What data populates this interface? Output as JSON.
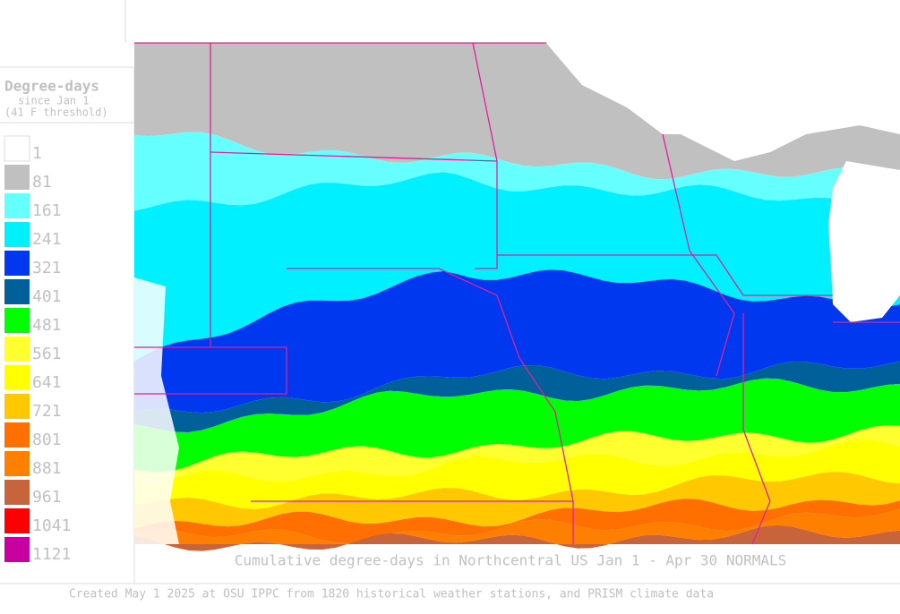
{
  "legend": {
    "title": "Degree-days",
    "subtitle": "since Jan 1",
    "threshold": "(41 F threshold)",
    "items": [
      {
        "label": "1",
        "color": "#ffffff"
      },
      {
        "label": "81",
        "color": "#c0c0c0"
      },
      {
        "label": "161",
        "color": "#66ffff"
      },
      {
        "label": "241",
        "color": "#00f0ff"
      },
      {
        "label": "321",
        "color": "#0038f0"
      },
      {
        "label": "401",
        "color": "#00609a"
      },
      {
        "label": "481",
        "color": "#00ff00"
      },
      {
        "label": "561",
        "color": "#ffff30"
      },
      {
        "label": "641",
        "color": "#ffff00"
      },
      {
        "label": "721",
        "color": "#ffc800"
      },
      {
        "label": "801",
        "color": "#ff7000"
      },
      {
        "label": "881",
        "color": "#ff8000"
      },
      {
        "label": "961",
        "color": "#c8643c"
      },
      {
        "label": "1041",
        "color": "#ff0000"
      },
      {
        "label": "1121",
        "color": "#c800a0"
      }
    ]
  },
  "caption": "Cumulative degree-days in Northcentral US Jan 1 - Apr 30 NORMALS",
  "credit": "Created May 1 2025 at OSU IPPC from 1820 historical weather stations, and PRISM climate data"
}
